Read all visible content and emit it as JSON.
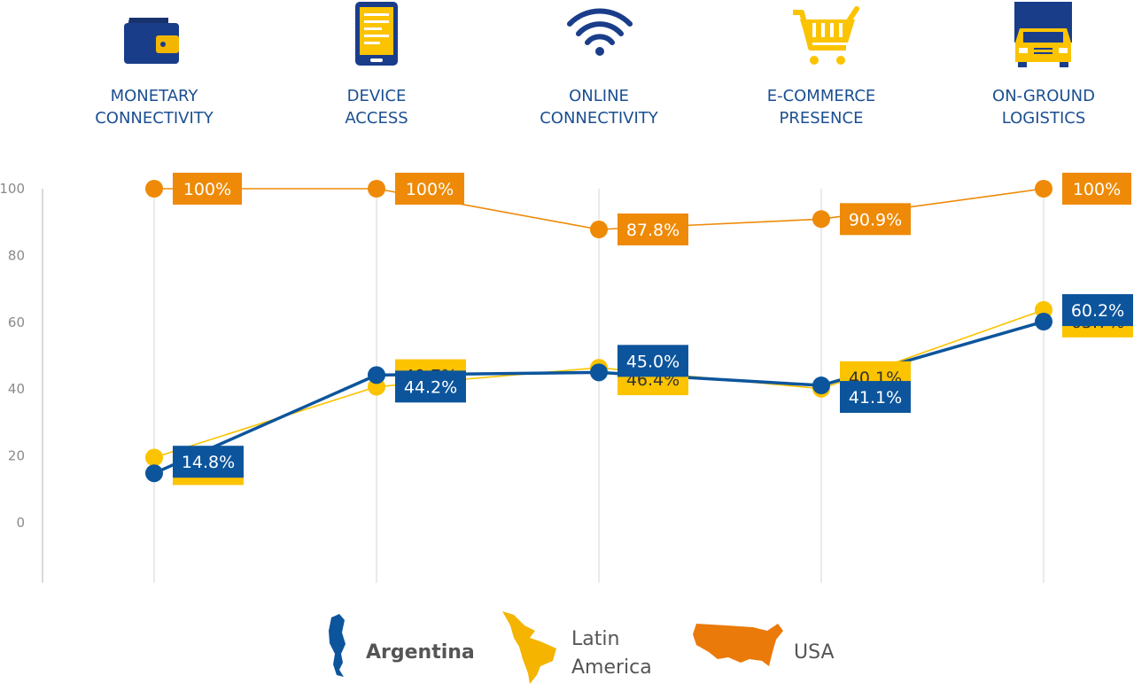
{
  "chart_data": {
    "type": "line",
    "categories": [
      [
        "MONETARY",
        "CONNECTIVITY"
      ],
      [
        "DEVICE",
        "ACCESS"
      ],
      [
        "ONLINE",
        "CONNECTIVITY"
      ],
      [
        "E-COMMERCE",
        "PRESENCE"
      ],
      [
        "ON-GROUND",
        "LOGISTICS"
      ]
    ],
    "category_icons": [
      "wallet-icon",
      "tablet-icon",
      "wifi-icon",
      "shopping-cart-icon",
      "truck-icon"
    ],
    "ylim": [
      -18,
      100
    ],
    "yticks": [
      0,
      20,
      40,
      60,
      80,
      100
    ],
    "grid": "vertical",
    "legend_position": "bottom-center",
    "series": [
      {
        "name": "USA",
        "color": "#ee8a07",
        "values": [
          100,
          100,
          87.8,
          90.9,
          100
        ],
        "labels": [
          "100%",
          "100%",
          "87.8%",
          "90.9%",
          "100%"
        ]
      },
      {
        "name": "Latin\nAmerica",
        "color": "#fbc300",
        "values": [
          19.5,
          40.7,
          46.4,
          40.1,
          63.7
        ],
        "labels": [
          "19.5%",
          "40.7%",
          "46.4%",
          "40.1%",
          "63.7%"
        ]
      },
      {
        "name": "Argentina",
        "color": "#0c559c",
        "values": [
          14.8,
          44.2,
          45.0,
          41.1,
          60.2
        ],
        "labels": [
          "14.8%",
          "44.2%",
          "45.0%",
          "41.1%",
          "60.2%"
        ]
      }
    ],
    "legend": [
      {
        "label": "Argentina",
        "icon": "argentina-map-icon",
        "color": "#0c559c",
        "bold": true
      },
      {
        "label": "Latin\nAmerica",
        "icon": "latin-america-map-icon",
        "color": "#fbc300",
        "bold": false
      },
      {
        "label": "USA",
        "icon": "usa-map-icon",
        "color": "#ee8a07",
        "bold": false
      }
    ]
  }
}
